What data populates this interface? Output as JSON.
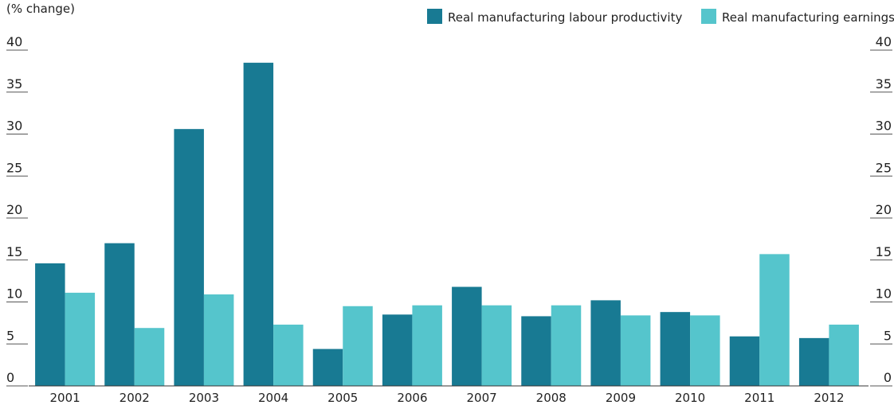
{
  "chart_data": {
    "type": "bar",
    "ylabel": "(% change)",
    "ylim": [
      0,
      40
    ],
    "yticks": [
      0,
      5,
      10,
      15,
      20,
      25,
      30,
      35,
      40
    ],
    "categories": [
      "2001",
      "2002",
      "2003",
      "2004",
      "2005",
      "2006",
      "2007",
      "2008",
      "2009",
      "2010",
      "2011",
      "2012"
    ],
    "series": [
      {
        "name": "Real manufacturing labour productivity",
        "color": "#187a93",
        "values": [
          14.6,
          17.0,
          30.6,
          38.5,
          4.4,
          8.5,
          11.8,
          8.3,
          10.2,
          8.8,
          5.9,
          5.7
        ]
      },
      {
        "name": "Real manufacturing earnings",
        "color": "#55c5cc",
        "values": [
          11.1,
          6.9,
          10.9,
          7.3,
          9.5,
          9.6,
          9.6,
          9.6,
          8.4,
          8.4,
          15.7,
          7.3
        ]
      }
    ],
    "legend_position": "top-right",
    "secondary_axis": "right-mirrored"
  }
}
